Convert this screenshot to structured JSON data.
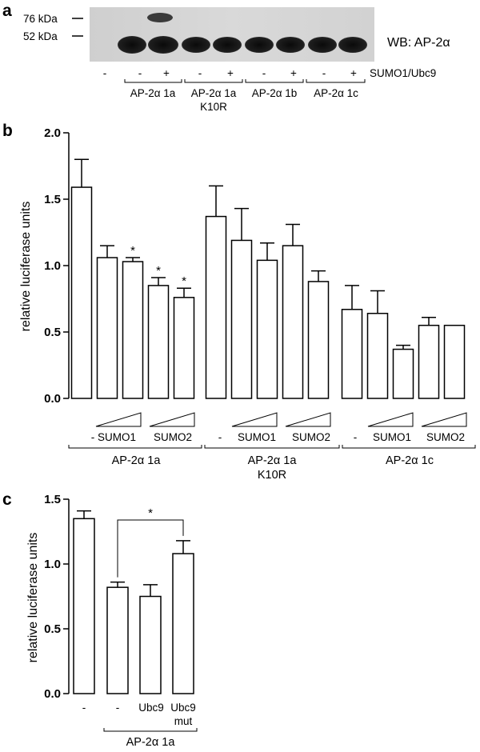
{
  "panels": {
    "a": {
      "letter": "a",
      "markers": [
        "76 kDa",
        "52 kDa"
      ],
      "blot_label": "WB: AP-2α",
      "treatment_label": "SUMO1/Ubc9",
      "signs": [
        "-",
        "-",
        "+",
        "-",
        "+",
        "-",
        "+",
        "-",
        "+"
      ],
      "groups": [
        {
          "lines": [
            "AP-2α 1a"
          ]
        },
        {
          "lines": [
            "AP-2α 1a",
            "K10R"
          ]
        },
        {
          "lines": [
            "AP-2α 1b"
          ]
        },
        {
          "lines": [
            "AP-2α 1c"
          ]
        }
      ]
    },
    "b": {
      "letter": "b",
      "conditions": [
        "-",
        "SUMO1",
        "SUMO2"
      ],
      "groups": [
        {
          "lines": [
            "AP-2α 1a"
          ]
        },
        {
          "lines": [
            "AP-2α 1a",
            "K10R"
          ]
        },
        {
          "lines": [
            "AP-2α 1c"
          ]
        }
      ]
    },
    "c": {
      "letter": "c",
      "categories": [
        "-",
        "-",
        "Ubc9",
        "Ubc9 mut"
      ],
      "category_lines": [
        [
          "-"
        ],
        [
          "-"
        ],
        [
          "Ubc9"
        ],
        [
          "Ubc9",
          "mut"
        ]
      ],
      "group_label": "AP-2α 1a"
    }
  },
  "chart_data": [
    {
      "type": "bar",
      "title": "",
      "xlabel": "",
      "ylabel": "relative luciferase units",
      "ylim": [
        0,
        2.0
      ],
      "yticks": [
        "0.0",
        "0.5",
        "1.0",
        "1.5",
        "2.0"
      ],
      "categories": [
        "AP-2α 1a -",
        "AP-2α 1a SUMO1 low",
        "AP-2α 1a SUMO1 high",
        "AP-2α 1a SUMO2 low",
        "AP-2α 1a SUMO2 high",
        "AP-2α 1a K10R -",
        "AP-2α 1a K10R SUMO1 low",
        "AP-2α 1a K10R SUMO1 high",
        "AP-2α 1a K10R SUMO2 low",
        "AP-2α 1a K10R SUMO2 high",
        "AP-2α 1c -",
        "AP-2α 1c SUMO1 low",
        "AP-2α 1c SUMO1 high",
        "AP-2α 1c SUMO2 low",
        "AP-2α 1c SUMO2 high"
      ],
      "values": [
        1.59,
        1.06,
        1.03,
        0.85,
        0.76,
        1.37,
        1.19,
        1.04,
        1.15,
        0.88,
        0.67,
        0.64,
        0.37,
        0.55,
        0.55
      ],
      "errors": [
        0.21,
        0.09,
        0.03,
        0.06,
        0.07,
        0.23,
        0.24,
        0.13,
        0.16,
        0.08,
        0.18,
        0.17,
        0.03,
        0.06,
        0.0
      ],
      "significant": [
        false,
        false,
        true,
        true,
        true,
        false,
        false,
        false,
        false,
        false,
        false,
        false,
        false,
        false,
        false
      ],
      "significance_label": "*",
      "grid": false
    },
    {
      "type": "bar",
      "title": "",
      "xlabel": "",
      "ylabel": "relative luciferase units",
      "ylim": [
        0,
        1.5
      ],
      "yticks": [
        "0.0",
        "0.5",
        "1.0",
        "1.5"
      ],
      "categories": [
        "-",
        "AP-2α 1a -",
        "AP-2α 1a Ubc9",
        "AP-2α 1a Ubc9 mut"
      ],
      "values": [
        1.35,
        0.82,
        0.75,
        1.08
      ],
      "errors": [
        0.06,
        0.04,
        0.09,
        0.1
      ],
      "comparison": {
        "from": 1,
        "to": 3,
        "label": "*"
      },
      "grid": false
    }
  ]
}
